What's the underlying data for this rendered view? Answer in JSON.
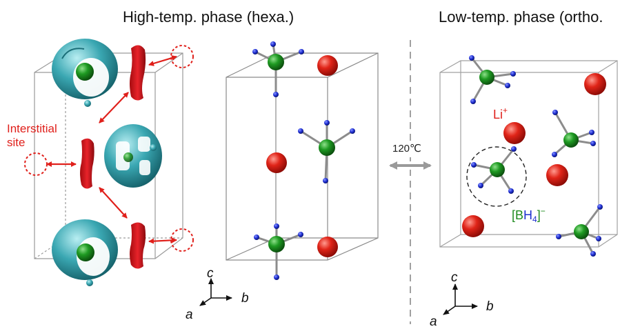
{
  "titles": {
    "high_temp": "High-temp. phase (hexa.)",
    "low_temp": "Low-temp. phase (ortho."
  },
  "labels": {
    "interstitial": [
      "Interstitial",
      "site"
    ],
    "transition_temp": "120℃",
    "li_ion": "Li",
    "li_charge": "+",
    "bh4_open": "[",
    "bh4_b": "B",
    "bh4_h": "H",
    "bh4_sub": "4",
    "bh4_close": "]",
    "bh4_charge": "−"
  },
  "axes": {
    "high_temp": {
      "c": "c",
      "a": "a",
      "b": "b"
    },
    "low_temp": {
      "c": "c",
      "a": "a",
      "b": "b"
    }
  },
  "colors": {
    "lithium": "#d61a12",
    "boron": "#1d8a1d",
    "hydrogen": "#1d2fd0",
    "density": "#38a9b4",
    "arrow": "#e0201b"
  }
}
